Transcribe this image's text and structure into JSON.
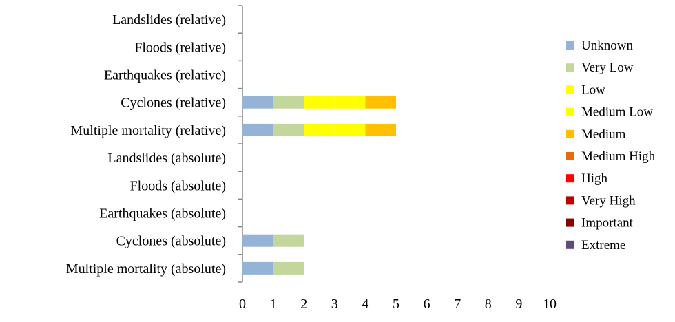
{
  "chart_data": {
    "type": "bar",
    "orientation": "horizontal",
    "stacked": true,
    "title": "",
    "xlabel": "",
    "ylabel": "",
    "xlim": [
      0,
      10
    ],
    "x_ticks": [
      "0",
      "1",
      "2",
      "3",
      "4",
      "5",
      "6",
      "7",
      "8",
      "9",
      "10"
    ],
    "grid": false,
    "legend_position": "right",
    "categories": [
      "Landslides (relative)",
      "Floods (relative)",
      "Earthquakes (relative)",
      "Cyclones (relative)",
      "Multiple mortality  (relative)",
      "Landslides (absolute)",
      "Floods (absolute)",
      "Earthquakes (absolute)",
      "Cyclones (absolute)",
      "Multiple mortality  (absolute)"
    ],
    "series": [
      {
        "name": "Unknown",
        "color": "#95b3d7",
        "values": [
          0,
          0,
          0,
          1,
          1,
          0,
          0,
          0,
          1,
          1
        ]
      },
      {
        "name": "Very Low",
        "color": "#c3d69b",
        "values": [
          0,
          0,
          0,
          1,
          1,
          0,
          0,
          0,
          1,
          1
        ]
      },
      {
        "name": "Low",
        "color": "#ffff00",
        "values": [
          0,
          0,
          0,
          1,
          1,
          0,
          0,
          0,
          0,
          0
        ]
      },
      {
        "name": "Medium Low",
        "color": "#ffff00",
        "values": [
          0,
          0,
          0,
          1,
          1,
          0,
          0,
          0,
          0,
          0
        ]
      },
      {
        "name": "Medium",
        "color": "#ffc000",
        "values": [
          0,
          0,
          0,
          1,
          1,
          0,
          0,
          0,
          0,
          0
        ]
      },
      {
        "name": "Medium High",
        "color": "#e46c0a",
        "values": [
          0,
          0,
          0,
          0,
          0,
          0,
          0,
          0,
          0,
          0
        ]
      },
      {
        "name": "High",
        "color": "#ff0000",
        "values": [
          0,
          0,
          0,
          0,
          0,
          0,
          0,
          0,
          0,
          0
        ]
      },
      {
        "name": "Very High",
        "color": "#c00000",
        "values": [
          0,
          0,
          0,
          0,
          0,
          0,
          0,
          0,
          0,
          0
        ]
      },
      {
        "name": "Important",
        "color": "#8b0000",
        "values": [
          0,
          0,
          0,
          0,
          0,
          0,
          0,
          0,
          0,
          0
        ]
      },
      {
        "name": "Extreme",
        "color": "#604a7b",
        "values": [
          0,
          0,
          0,
          0,
          0,
          0,
          0,
          0,
          0,
          0
        ]
      }
    ]
  }
}
